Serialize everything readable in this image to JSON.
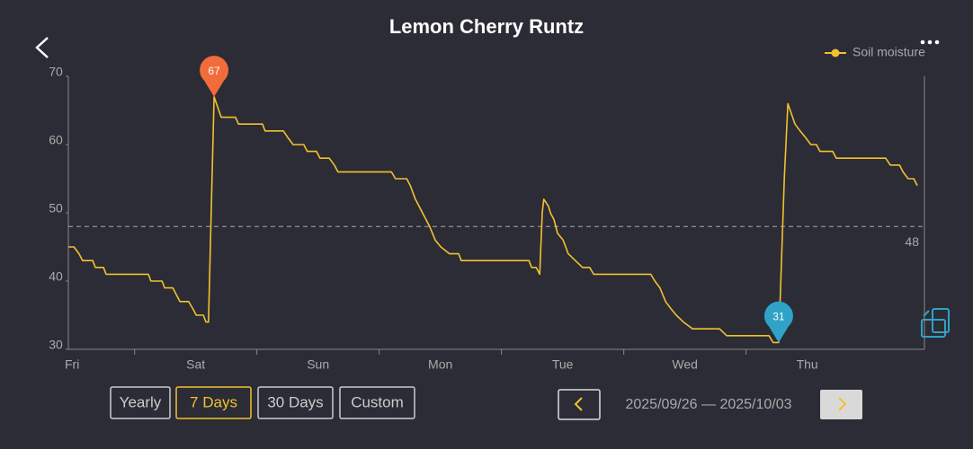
{
  "header": {
    "title": "Lemon Cherry Runtz"
  },
  "chart_data": {
    "type": "line",
    "x": [
      0,
      1.1,
      2.1,
      2.8,
      4.8,
      5.3,
      6.9,
      7.4,
      15.7,
      16.2,
      18.4,
      18.9,
      20.5,
      21.2,
      21.9,
      23.6,
      24.4,
      25.1,
      26.5,
      27.0,
      27.5,
      28.6,
      30.0,
      32.8,
      33.4,
      38.1,
      38.6,
      42.2,
      43.1,
      44.1,
      46.2,
      46.9,
      48.7,
      49.4,
      51.2,
      52.2,
      52.9,
      63.4,
      64.2,
      66.4,
      67.1,
      68.1,
      69.5,
      70.9,
      72.0,
      73.1,
      74.8,
      76.6,
      77.1,
      81.9,
      90.4,
      90.9,
      91.8,
      92.5,
      93.0,
      93.3,
      94.2,
      94.6,
      95.3,
      96.0,
      97.1,
      98.1,
      99.5,
      100.9,
      102.3,
      103.1,
      111.9,
      114.3,
      115.1,
      116.1,
      117.2,
      118.2,
      119.3,
      120.7,
      122.5,
      124.2,
      127.8,
      129.2,
      137.5,
      138.3,
      139.4,
      140.5,
      141.2,
      142.6,
      143.6,
      144.7,
      145.7,
      146.8,
      147.5,
      150.0,
      150.7,
      155.1,
      160.4,
      161.3,
      163.1,
      163.8,
      164.8,
      165.9,
      166.6
    ],
    "series": [
      {
        "name": "Soil moisture",
        "color": "#f2c12e",
        "values": [
          45,
          45,
          44,
          43,
          43,
          42,
          42,
          41,
          41,
          40,
          40,
          39,
          39,
          38,
          37,
          37,
          36,
          35,
          35,
          34,
          34,
          67,
          64,
          64,
          63,
          63,
          62,
          62,
          61,
          60,
          60,
          59,
          59,
          58,
          58,
          57,
          56,
          56,
          55,
          55,
          54,
          52,
          50,
          48,
          46,
          45,
          44,
          44,
          43,
          43,
          43,
          42,
          42,
          41,
          50,
          52,
          51,
          50,
          49,
          47,
          46,
          44,
          43,
          42,
          42,
          41,
          41,
          41,
          40,
          39,
          37,
          36,
          35,
          34,
          33,
          33,
          33,
          32,
          32,
          31,
          31,
          55,
          66,
          63,
          62,
          61,
          60,
          60,
          59,
          59,
          58,
          58,
          58,
          57,
          57,
          56,
          55,
          55,
          54
        ]
      }
    ],
    "xlim": [
      0,
      168
    ],
    "xticks": [
      {
        "value": 1,
        "label": "Fri"
      },
      {
        "value": 25,
        "label": "Sat"
      },
      {
        "value": 49,
        "label": "Sun"
      },
      {
        "value": 73,
        "label": "Mon"
      },
      {
        "value": 97,
        "label": "Tue"
      },
      {
        "value": 121,
        "label": "Wed"
      },
      {
        "value": 145,
        "label": "Thu"
      }
    ],
    "ylim": [
      30,
      70
    ],
    "yticks": [
      30,
      40,
      50,
      60,
      70
    ],
    "reference_line": 48,
    "max_marker": {
      "x": 28.6,
      "value": 67,
      "color": "#f26b3a"
    },
    "min_marker": {
      "x": 139.4,
      "value": 31,
      "color": "#2fa3c7"
    },
    "legend": "top-right"
  },
  "range_buttons": {
    "labels": [
      "Yearly",
      "7 Days",
      "30 Days",
      "Custom"
    ],
    "selected": 1
  },
  "date_range": "2025/09/26 — 2025/10/03"
}
